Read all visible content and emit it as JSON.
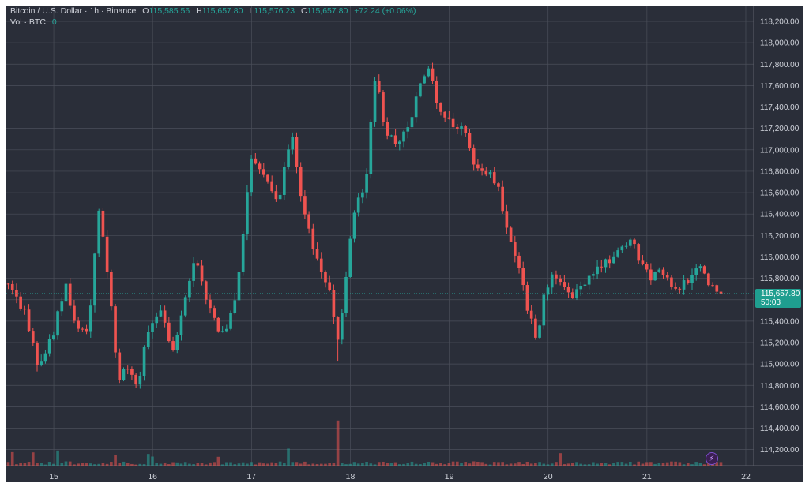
{
  "colors": {
    "background": "#2a2e39",
    "grid": "#4b4f5a",
    "up": "#26a69a",
    "down": "#ef5350",
    "text": "#d1d4dc",
    "price_label_bg": "#1f9e8f"
  },
  "legend": {
    "symbol": "Bitcoin / U.S. Dollar · 1h · Binance",
    "o_label": "O",
    "o_value": "115,585.56",
    "h_label": "H",
    "h_value": "115,657.80",
    "l_label": "L",
    "l_value": "115,576.23",
    "c_label": "C",
    "c_value": "115,657.80",
    "change": "+72.24 (+0.06%)",
    "vol_label": "Vol · BTC",
    "vol_value": "0"
  },
  "price_label": {
    "price": "115,657.80",
    "countdown": "50:03"
  },
  "chart_data": {
    "type": "candlestick",
    "title": "Bitcoin / U.S. Dollar · 1h · Binance",
    "timeframe": "1h",
    "x_tick_labels": [
      "15",
      "16",
      "17",
      "18",
      "19",
      "20",
      "21",
      "22"
    ],
    "y_tick_labels": [
      "114,200.00",
      "114,400.00",
      "114,600.00",
      "114,800.00",
      "115,000.00",
      "115,200.00",
      "115,400.00",
      "115,600.00",
      "115,800.00",
      "116,000.00",
      "116,200.00",
      "116,400.00",
      "116,600.00",
      "116,800.00",
      "117,000.00",
      "117,200.00",
      "117,400.00",
      "117,600.00",
      "117,800.00",
      "118,000.00",
      "118,200.00"
    ],
    "y_ticks": [
      114200,
      114400,
      114600,
      114800,
      115000,
      115200,
      115400,
      115600,
      115800,
      116000,
      116200,
      116400,
      116600,
      116800,
      117000,
      117200,
      117400,
      117600,
      117800,
      118000,
      118200
    ],
    "ylim": [
      114050,
      118340
    ],
    "x_range_days": [
      14.52,
      22.08
    ],
    "x_tick_days": [
      15,
      16,
      17,
      18,
      19,
      20,
      21,
      22
    ],
    "grid": true,
    "last_price": 115657.8,
    "anchors": [
      [
        14.54,
        115750
      ],
      [
        14.7,
        115500
      ],
      [
        14.85,
        114950
      ],
      [
        15.0,
        115300
      ],
      [
        15.12,
        115750
      ],
      [
        15.2,
        115400
      ],
      [
        15.35,
        115250
      ],
      [
        15.45,
        116500
      ],
      [
        15.55,
        115800
      ],
      [
        15.65,
        114850
      ],
      [
        15.75,
        115000
      ],
      [
        15.85,
        114800
      ],
      [
        15.95,
        115300
      ],
      [
        16.08,
        115500
      ],
      [
        16.2,
        115150
      ],
      [
        16.32,
        115550
      ],
      [
        16.42,
        116000
      ],
      [
        16.55,
        115600
      ],
      [
        16.65,
        115350
      ],
      [
        16.75,
        115300
      ],
      [
        16.85,
        115650
      ],
      [
        16.92,
        116300
      ],
      [
        17.0,
        116900
      ],
      [
        17.12,
        116800
      ],
      [
        17.28,
        116500
      ],
      [
        17.4,
        117200
      ],
      [
        17.5,
        116550
      ],
      [
        17.58,
        116250
      ],
      [
        17.68,
        115900
      ],
      [
        17.78,
        115700
      ],
      [
        17.88,
        115200
      ],
      [
        17.95,
        115800
      ],
      [
        18.05,
        116500
      ],
      [
        18.15,
        116650
      ],
      [
        18.25,
        117700
      ],
      [
        18.35,
        117200
      ],
      [
        18.45,
        117050
      ],
      [
        18.6,
        117200
      ],
      [
        18.7,
        117600
      ],
      [
        18.8,
        117800
      ],
      [
        18.88,
        117400
      ],
      [
        18.95,
        117350
      ],
      [
        19.05,
        117150
      ],
      [
        19.15,
        117200
      ],
      [
        19.25,
        116900
      ],
      [
        19.35,
        116800
      ],
      [
        19.48,
        116700
      ],
      [
        19.58,
        116300
      ],
      [
        19.7,
        115900
      ],
      [
        19.8,
        115500
      ],
      [
        19.88,
        115200
      ],
      [
        19.95,
        115600
      ],
      [
        20.05,
        115900
      ],
      [
        20.15,
        115700
      ],
      [
        20.25,
        115650
      ],
      [
        20.38,
        115750
      ],
      [
        20.48,
        115900
      ],
      [
        20.6,
        115950
      ],
      [
        20.72,
        116100
      ],
      [
        20.85,
        116150
      ],
      [
        20.95,
        115900
      ],
      [
        21.05,
        115800
      ],
      [
        21.15,
        115850
      ],
      [
        21.25,
        115700
      ],
      [
        21.4,
        115750
      ],
      [
        21.52,
        115900
      ],
      [
        21.62,
        115750
      ],
      [
        21.72,
        115700
      ],
      [
        21.76,
        115658
      ]
    ]
  }
}
